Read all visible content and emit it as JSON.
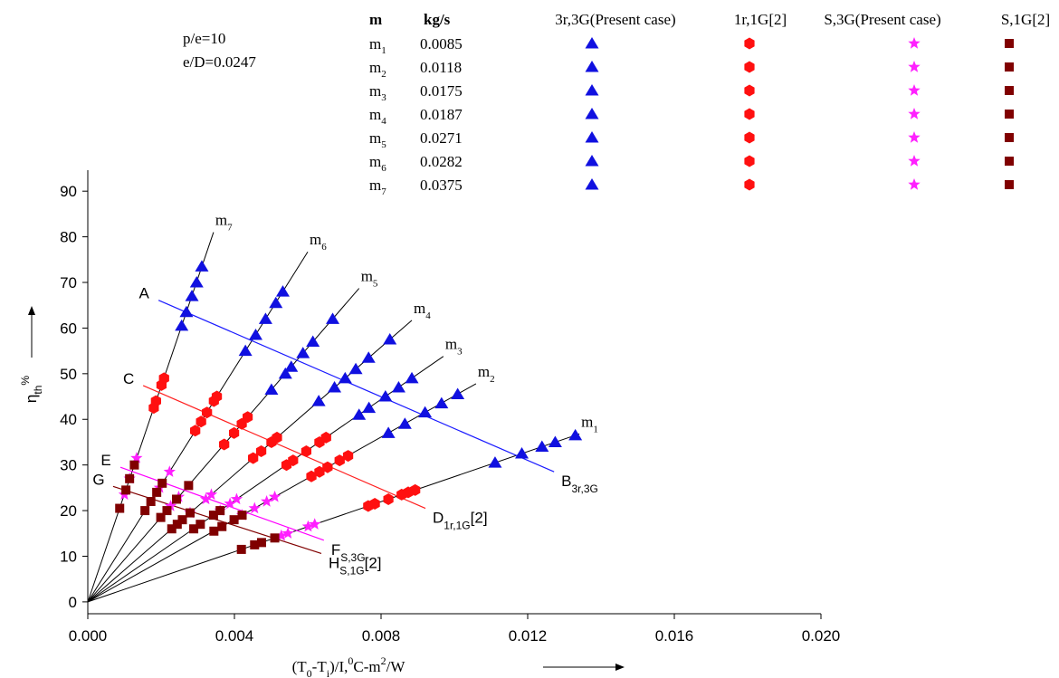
{
  "chart_data": {
    "type": "scatter",
    "annotations": [
      "p/e=10",
      "e/D=0.0247"
    ],
    "y_label": [
      {
        "t": "η"
      },
      {
        "t": "th",
        "sub": true
      },
      {
        "t": "%",
        "sup": true
      }
    ],
    "x_label": [
      {
        "t": "(T"
      },
      {
        "t": "0",
        "sub": true
      },
      {
        "t": "-T"
      },
      {
        "t": "i",
        "sub": true
      },
      {
        "t": ")/I,"
      },
      {
        "t": "0",
        "sup": true
      },
      {
        "t": "C-m"
      },
      {
        "t": "2",
        "sup": true
      },
      {
        "t": "/W"
      }
    ],
    "xlim": [
      0,
      0.02
    ],
    "ylim": [
      -2.6,
      94.6
    ],
    "xticks": [
      {
        "value": 0,
        "label": "0.000"
      },
      {
        "value": 0.004,
        "label": "0.004"
      },
      {
        "value": 0.008,
        "label": "0.008"
      },
      {
        "value": 0.012,
        "label": "0.012"
      },
      {
        "value": 0.016,
        "label": "0.016"
      },
      {
        "value": 0.02,
        "label": "0.020"
      }
    ],
    "yticks": [
      0,
      10,
      20,
      30,
      40,
      50,
      60,
      70,
      80,
      90
    ],
    "flow_table": {
      "headers": [
        "m",
        "kg/s"
      ],
      "rows": [
        {
          "m": "m",
          "sub": "1",
          "flow": 0.0085
        },
        {
          "m": "m",
          "sub": "2",
          "flow": 0.0118
        },
        {
          "m": "m",
          "sub": "3",
          "flow": 0.0175
        },
        {
          "m": "m",
          "sub": "4",
          "flow": 0.0187
        },
        {
          "m": "m",
          "sub": "5",
          "flow": 0.0271
        },
        {
          "m": "m",
          "sub": "6",
          "flow": 0.0282
        },
        {
          "m": "m",
          "sub": "7",
          "flow": 0.0375
        }
      ]
    },
    "series": [
      {
        "name": "3r,3G(Present case)",
        "color": "#1010e0",
        "marker": "triangle",
        "x": [
          0.00256,
          0.00269,
          0.00284,
          0.00297,
          0.00311,
          0.0043,
          0.00458,
          0.00485,
          0.00513,
          0.00532,
          0.00501,
          0.00539,
          0.00555,
          0.00587,
          0.00614,
          0.00668,
          0.0063,
          0.00673,
          0.00702,
          0.00731,
          0.00766,
          0.00824,
          0.0074,
          0.00767,
          0.00812,
          0.00848,
          0.00884,
          0.0082,
          0.00865,
          0.0092,
          0.00965,
          0.01009,
          0.01111,
          0.01184,
          0.01239,
          0.01275,
          0.0133
        ],
        "values": [
          60.5,
          63.5,
          67,
          70,
          73.5,
          55,
          58.5,
          62,
          65.5,
          68,
          46.5,
          50,
          51.5,
          54.5,
          57,
          62,
          44,
          47,
          49,
          51,
          53.5,
          57.5,
          41,
          42.5,
          45,
          47,
          49,
          37,
          39,
          41.5,
          43.5,
          45.5,
          30.5,
          32.5,
          34,
          35,
          36.5
        ]
      },
      {
        "name": "1r,1G[2]",
        "color": "#ff1010",
        "marker": "hexagon",
        "x": [
          0.0018,
          0.00186,
          0.00201,
          0.00208,
          0.00293,
          0.00309,
          0.00325,
          0.00344,
          0.00352,
          0.00372,
          0.00399,
          0.0042,
          0.00436,
          0.00451,
          0.00473,
          0.00501,
          0.00516,
          0.00542,
          0.0056,
          0.00596,
          0.00632,
          0.0065,
          0.0061,
          0.00632,
          0.00654,
          0.00687,
          0.0071,
          0.00765,
          0.00783,
          0.0082,
          0.00856,
          0.00874,
          0.00893
        ],
        "values": [
          42.5,
          44,
          47.5,
          49,
          37.5,
          39.5,
          41.5,
          44,
          45,
          34.5,
          37,
          39,
          40.5,
          31.5,
          33,
          35,
          36,
          30,
          31,
          33,
          35,
          36,
          27.5,
          28.5,
          29.5,
          31,
          32,
          21,
          21.5,
          22.5,
          23.5,
          24,
          24.5
        ]
      },
      {
        "name": "S,3G(Present case)",
        "color": "#ff20ff",
        "marker": "star",
        "x": [
          0.001,
          0.00114,
          0.00133,
          0.00196,
          0.00223,
          0.00226,
          0.00248,
          0.00279,
          0.00322,
          0.00337,
          0.00361,
          0.00388,
          0.00406,
          0.00421,
          0.00455,
          0.00488,
          0.0051,
          0.00528,
          0.00546,
          0.00601,
          0.00619
        ],
        "values": [
          23.5,
          27,
          31.5,
          25,
          28.5,
          21,
          23,
          19.5,
          22.5,
          23.5,
          20,
          21.5,
          22.5,
          19,
          20.5,
          22,
          23,
          14.5,
          15,
          16.5,
          17
        ]
      },
      {
        "name": "S,1G[2]",
        "color": "#800000",
        "marker": "square",
        "x": [
          0.00087,
          0.00104,
          0.00114,
          0.00127,
          0.00156,
          0.00172,
          0.00188,
          0.00203,
          0.00199,
          0.00216,
          0.00242,
          0.00275,
          0.00229,
          0.00244,
          0.00258,
          0.00279,
          0.00289,
          0.00307,
          0.00343,
          0.00361,
          0.00344,
          0.00366,
          0.00399,
          0.00421,
          0.00419,
          0.00455,
          0.00474,
          0.0051
        ],
        "values": [
          20.5,
          24.5,
          27,
          30,
          20,
          22,
          24,
          26,
          18.5,
          20,
          22.5,
          25.5,
          16,
          17,
          18,
          19.5,
          16,
          17,
          19,
          20,
          15.5,
          16.5,
          18,
          19,
          11.5,
          12.5,
          13,
          14
        ]
      }
    ],
    "fit_lines": [
      {
        "label": "m",
        "sub": "7",
        "x": [
          0,
          0.00343
        ],
        "y": [
          0,
          81
        ]
      },
      {
        "label": "m",
        "sub": "6",
        "x": [
          0,
          0.006
        ],
        "y": [
          0,
          76.7
        ]
      },
      {
        "label": "m",
        "sub": "5",
        "x": [
          0,
          0.0074
        ],
        "y": [
          0,
          68.7
        ]
      },
      {
        "label": "m",
        "sub": "4",
        "x": [
          0,
          0.00884
        ],
        "y": [
          0,
          61.7
        ]
      },
      {
        "label": "m",
        "sub": "3",
        "x": [
          0,
          0.0097
        ],
        "y": [
          0,
          53.8
        ]
      },
      {
        "label": "m",
        "sub": "2",
        "x": [
          0,
          0.01059
        ],
        "y": [
          0,
          47.8
        ]
      },
      {
        "label": "m",
        "sub": "1",
        "x": [
          0,
          0.01341
        ],
        "y": [
          0,
          36.8
        ]
      }
    ],
    "trend_lines": [
      {
        "color": "#1a1aff",
        "start_label": "A",
        "end_label": "B",
        "end_sub": "3r,3G",
        "x": [
          0.00193,
          0.01272
        ],
        "y": [
          66.1,
          28.5
        ]
      },
      {
        "color": "#ff2020",
        "start_label": "C",
        "end_label": "D",
        "end_sub": "1r,1G",
        "end_suffix": "[2]",
        "x": [
          0.00151,
          0.00921
        ],
        "y": [
          47.4,
          20.5
        ]
      },
      {
        "color": "#ff00ff",
        "start_label": "E",
        "end_label": "F",
        "end_sub": "S,3G",
        "x": [
          0.00089,
          0.00644
        ],
        "y": [
          29.5,
          13.5
        ]
      },
      {
        "color": "#800000",
        "start_label": "G",
        "end_label": "H",
        "end_sub": "S,1G",
        "end_suffix": "[2]",
        "x": [
          0.00069,
          0.00637
        ],
        "y": [
          25.3,
          10.6
        ]
      }
    ]
  }
}
